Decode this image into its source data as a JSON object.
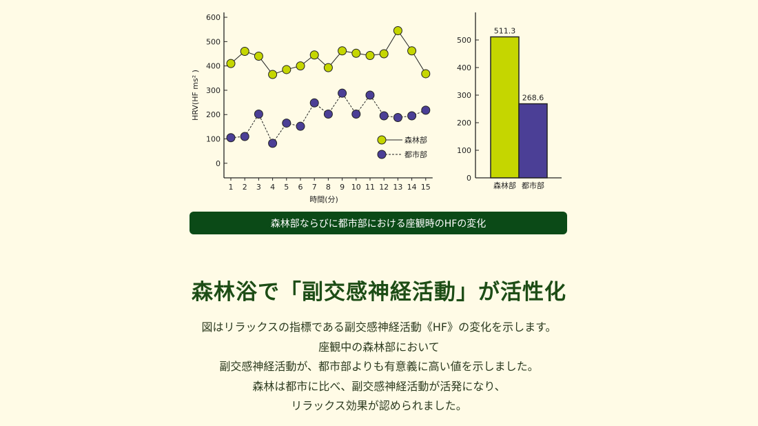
{
  "chart_data": [
    {
      "type": "line",
      "ylabel": "HRV(HF ms² )",
      "xlabel": "時間(分)",
      "x": [
        1,
        2,
        3,
        4,
        5,
        6,
        7,
        8,
        9,
        10,
        11,
        12,
        13,
        14,
        15
      ],
      "yticks": [
        0,
        100,
        200,
        300,
        400,
        500,
        600
      ],
      "ylim": [
        -60,
        620
      ],
      "series": [
        {
          "name": "森林部",
          "color": "#c5d600",
          "line": "solid",
          "values": [
            410,
            460,
            440,
            365,
            385,
            400,
            445,
            393,
            462,
            452,
            443,
            450,
            545,
            462,
            368
          ]
        },
        {
          "name": "都市部",
          "color": "#4b3f96",
          "line": "dashed",
          "values": [
            105,
            110,
            202,
            82,
            165,
            152,
            248,
            202,
            288,
            202,
            280,
            195,
            188,
            195,
            218
          ]
        }
      ],
      "legend_position": "bottom-right"
    },
    {
      "type": "bar",
      "categories": [
        "森林部",
        "都市部"
      ],
      "values": [
        511.3,
        268.6
      ],
      "value_labels": [
        "511.3",
        "268.6"
      ],
      "colors": [
        "#c5d600",
        "#4b3f96"
      ],
      "yticks": [
        0,
        100,
        200,
        300,
        400,
        500
      ],
      "ylim": [
        0,
        600
      ]
    }
  ],
  "caption": "森林部ならびに都市部における座観時のHFの変化",
  "heading": "森林浴で「副交感神経活動」が活性化",
  "body_lines": [
    "図はリラックスの指標である副交感神経活動《HF》の変化を示します。",
    "座観中の森林部において",
    "副交感神経活動が、都市部よりも有意義に高い値を示しました。",
    "森林は都市に比べ、副交感神経活動が活発になり、",
    "リラックス効果が認められました。"
  ]
}
